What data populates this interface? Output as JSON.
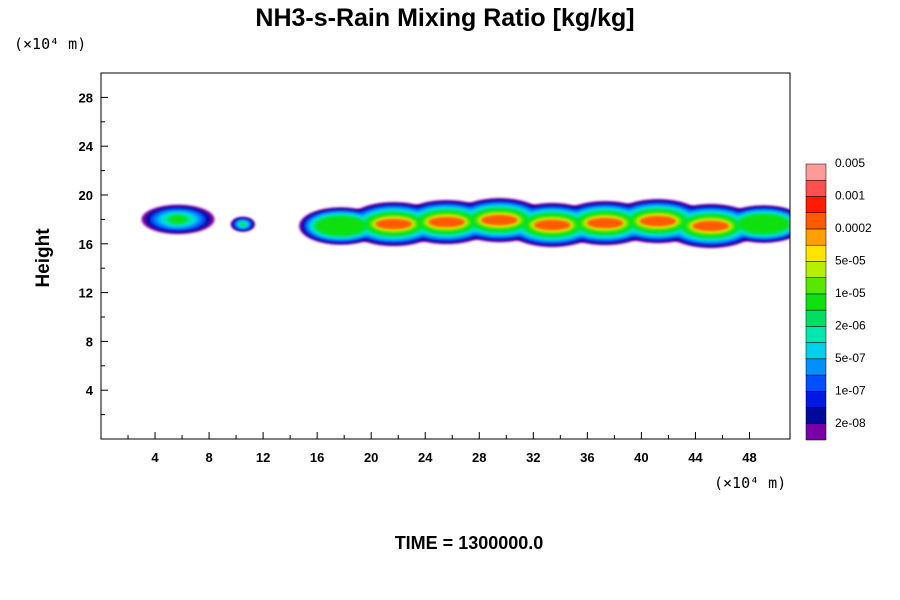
{
  "chart_data": {
    "type": "heatmap",
    "title": "NH3-s-Rain Mixing Ratio [kg/kg]",
    "xlabel": "",
    "ylabel": "Height",
    "x_units_label": "(×10⁴ m)",
    "y_units_label": "(×10⁴ m)",
    "xlim": [
      0,
      51
    ],
    "ylim": [
      0,
      30
    ],
    "x_ticks": [
      4,
      8,
      12,
      16,
      20,
      24,
      28,
      32,
      36,
      40,
      44,
      48
    ],
    "y_ticks": [
      4,
      8,
      12,
      16,
      20,
      24,
      28
    ],
    "x_tick_labels": [
      "4",
      "8",
      "12",
      "16",
      "20",
      "24",
      "28",
      "32",
      "36",
      "40",
      "44",
      "48"
    ],
    "y_tick_labels": [
      "4",
      "8",
      "12",
      "16",
      "20",
      "24",
      "28"
    ],
    "colorbar": {
      "colors": [
        "#7a00a8",
        "#000a9a",
        "#0018e6",
        "#0050ff",
        "#0090ff",
        "#00d2ee",
        "#00e8b0",
        "#00e060",
        "#10e010",
        "#58e800",
        "#b8ee00",
        "#ffe400",
        "#ffa000",
        "#ff5a00",
        "#ff1c00",
        "#ff5050",
        "#ff9a9a"
      ],
      "labels": [
        "2e-08",
        "1e-07",
        "5e-07",
        "2e-06",
        "1e-05",
        "5e-05",
        "0.0002",
        "0.001",
        "0.005"
      ]
    },
    "regions": [
      {
        "name": "left-cloud",
        "x": [
          3.0,
          8.4
        ],
        "y": [
          16.8,
          19.2
        ],
        "peak_color_index": 8
      },
      {
        "name": "small-cloud",
        "x": [
          9.6,
          11.4
        ],
        "y": [
          17.0,
          18.2
        ],
        "peak_color_index": 7
      },
      {
        "name": "main-band",
        "x": [
          15.8,
          51.0
        ],
        "y": [
          16.2,
          19.8
        ],
        "peak_color_index": 13
      }
    ],
    "grid": false,
    "legend_position": "right"
  },
  "footer": {
    "time_label": "TIME = 1300000.0"
  }
}
